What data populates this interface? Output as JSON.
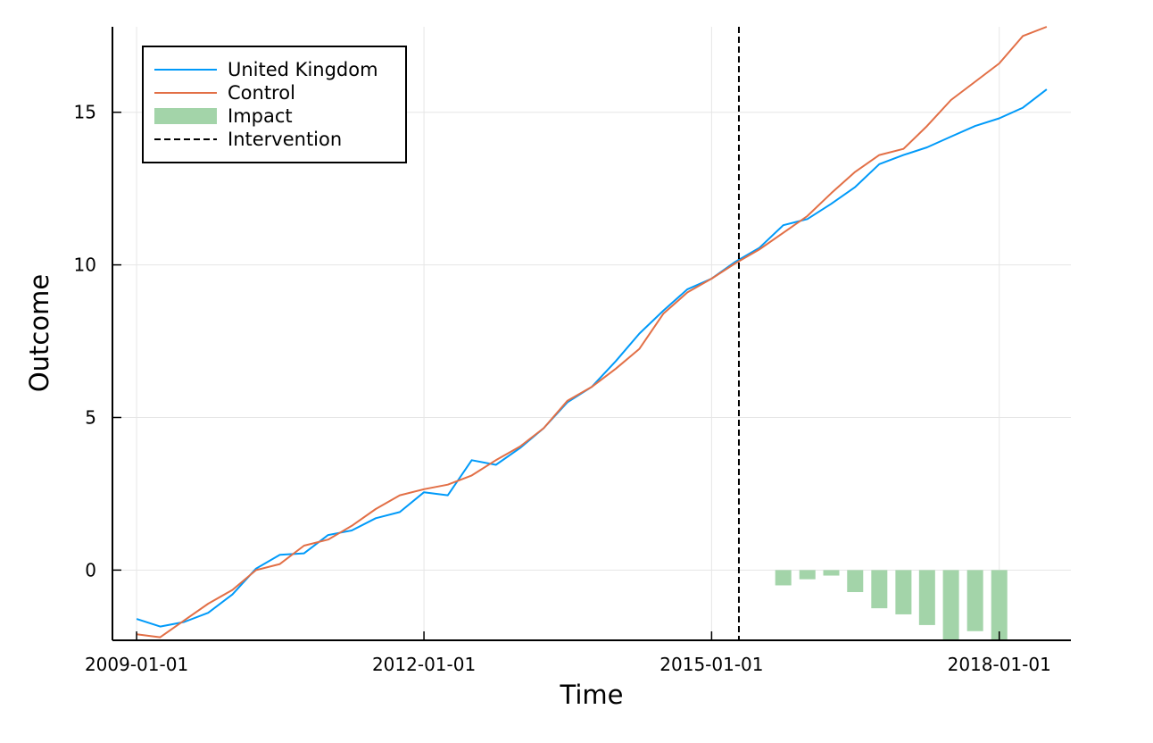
{
  "chart_data": {
    "type": "line",
    "title": "",
    "xlabel": "Time",
    "ylabel": "Outcome",
    "xlim": [
      "2008-10-01",
      "2018-10-01"
    ],
    "ylim": [
      -2.3,
      17.8
    ],
    "x_ticks": [
      "2009-01-01",
      "2012-01-01",
      "2015-01-01",
      "2018-01-01"
    ],
    "y_ticks": [
      0,
      5,
      10,
      15
    ],
    "grid": true,
    "legend_position": "top-left",
    "x": [
      "2009-01-01",
      "2009-04-01",
      "2009-07-01",
      "2009-10-01",
      "2010-01-01",
      "2010-04-01",
      "2010-07-01",
      "2010-10-01",
      "2011-01-01",
      "2011-04-01",
      "2011-07-01",
      "2011-10-01",
      "2012-01-01",
      "2012-04-01",
      "2012-07-01",
      "2012-10-01",
      "2013-01-01",
      "2013-04-01",
      "2013-07-01",
      "2013-10-01",
      "2014-01-01",
      "2014-04-01",
      "2014-07-01",
      "2014-10-01",
      "2015-01-01",
      "2015-04-01",
      "2015-07-01",
      "2015-10-01",
      "2016-01-01",
      "2016-04-01",
      "2016-07-01",
      "2016-10-01",
      "2017-01-01",
      "2017-04-01",
      "2017-07-01",
      "2017-10-01",
      "2018-01-01",
      "2018-04-01",
      "2018-07-01"
    ],
    "series": [
      {
        "name": "United Kingdom",
        "color": "#009af9",
        "values": [
          -1.6,
          -1.85,
          -1.7,
          -1.4,
          -0.8,
          0.05,
          0.5,
          0.55,
          1.15,
          1.3,
          1.7,
          1.9,
          2.55,
          2.45,
          3.6,
          3.45,
          4.0,
          4.65,
          5.5,
          6.0,
          6.85,
          7.75,
          8.5,
          9.2,
          9.55,
          10.1,
          10.55,
          11.3,
          11.5,
          12.0,
          12.55,
          13.3,
          13.6,
          13.85,
          14.2,
          14.55,
          14.8,
          15.15,
          15.75
        ]
      },
      {
        "name": "Control",
        "color": "#e26f46",
        "values": [
          -2.1,
          -2.2,
          -1.65,
          -1.1,
          -0.65,
          0.0,
          0.2,
          0.8,
          1.0,
          1.45,
          2.0,
          2.45,
          2.65,
          2.8,
          3.1,
          3.6,
          4.05,
          4.65,
          5.55,
          6.0,
          6.6,
          7.25,
          8.4,
          9.1,
          9.55,
          10.05,
          10.5,
          11.05,
          11.6,
          12.35,
          13.05,
          13.6,
          13.8,
          14.55,
          15.4,
          16.0,
          16.6,
          17.5,
          17.8
        ]
      }
    ],
    "impact": {
      "name": "Impact",
      "color": "#a3d4a9",
      "x": [
        "2015-10-01",
        "2016-01-01",
        "2016-04-01",
        "2016-07-01",
        "2016-10-01",
        "2017-01-01",
        "2017-04-01",
        "2017-07-01",
        "2017-10-01",
        "2018-01-01"
      ],
      "values": [
        -0.5,
        -0.3,
        -0.18,
        -0.72,
        -1.25,
        -1.45,
        -1.8,
        -2.3,
        -2.0,
        -2.3
      ]
    },
    "intervention": {
      "name": "Intervention",
      "x": "2015-04-15",
      "color": "#000000"
    }
  }
}
